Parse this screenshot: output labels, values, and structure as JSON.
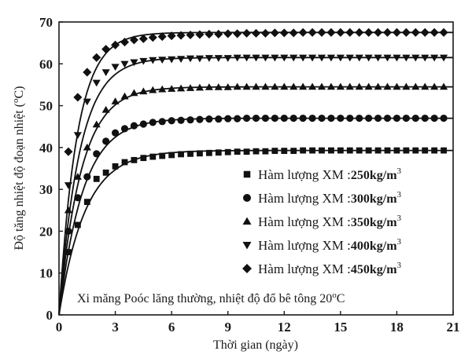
{
  "chart_data": {
    "type": "scatter",
    "xlabel": "Thời gian (ngày)",
    "ylabel_prefix": "Độ tăng nhiệt độ đoạn nhiệt (",
    "ylabel_degree": "o",
    "ylabel_suffix": "C)",
    "xlim": [
      0,
      21
    ],
    "ylim": [
      0,
      70
    ],
    "xticks": [
      "0",
      "3",
      "6",
      "9",
      "12",
      "15",
      "18",
      "21"
    ],
    "yticks": [
      "0",
      "10",
      "20",
      "30",
      "40",
      "50",
      "60",
      "70"
    ],
    "grid": false,
    "legend_position": "right",
    "note_prefix": "Xi măng Poóc lăng thường, nhiệt độ đổ bê tông 20",
    "note_degree": "o",
    "note_suffix": "C",
    "series": [
      {
        "legend_prefix": "Hàm lượng XM :",
        "legend_unit": "250kg/m",
        "legend_exp": "3",
        "marker": "square",
        "ultimate": 39.3,
        "x": [
          0.5,
          1,
          1.5,
          2,
          2.5,
          3,
          3.5,
          4,
          4.5,
          5,
          5.5,
          6,
          6.5,
          7,
          7.5,
          8,
          8.5,
          9,
          9.5,
          10,
          10.5,
          11,
          11.5,
          12,
          12.5,
          13,
          13.5,
          14,
          14.5,
          15,
          15.5,
          16,
          16.5,
          17,
          17.5,
          18,
          18.5,
          19,
          19.5,
          20,
          20.5
        ],
        "y": [
          15,
          21.5,
          27,
          32.5,
          34,
          35.5,
          36.5,
          37,
          37.5,
          37.8,
          38,
          38.2,
          38.4,
          38.5,
          38.6,
          38.7,
          38.8,
          38.9,
          39,
          39,
          39.1,
          39.1,
          39.2,
          39.2,
          39.2,
          39.3,
          39.3,
          39.3,
          39.3,
          39.3,
          39.3,
          39.3,
          39.3,
          39.3,
          39.3,
          39.3,
          39.3,
          39.3,
          39.3,
          39.3,
          39.3
        ]
      },
      {
        "legend_prefix": "Hàm lượng XM :",
        "legend_unit": "300kg/m",
        "legend_exp": "3",
        "marker": "circle",
        "ultimate": 47,
        "x": [
          0.5,
          1,
          1.5,
          2,
          2.5,
          3,
          3.5,
          4,
          4.5,
          5,
          5.5,
          6,
          6.5,
          7,
          7.5,
          8,
          8.5,
          9,
          9.5,
          10,
          10.5,
          11,
          11.5,
          12,
          12.5,
          13,
          13.5,
          14,
          14.5,
          15,
          15.5,
          16,
          16.5,
          17,
          17.5,
          18,
          18.5,
          19,
          19.5,
          20,
          20.5
        ],
        "y": [
          20,
          28,
          33,
          38.5,
          41.5,
          43.5,
          44.5,
          45.2,
          45.6,
          46,
          46.2,
          46.4,
          46.5,
          46.6,
          46.7,
          46.8,
          46.8,
          46.9,
          46.9,
          47,
          47,
          47,
          47,
          47,
          47,
          47,
          47,
          47,
          47,
          47,
          47,
          47,
          47,
          47,
          47,
          47,
          47,
          47,
          47,
          47,
          47
        ]
      },
      {
        "legend_prefix": "Hàm lượng XM :",
        "legend_unit": "350kg/m",
        "legend_exp": "3",
        "marker": "triangle-up",
        "ultimate": 54.5,
        "x": [
          0.5,
          1,
          1.5,
          2,
          2.5,
          3,
          3.5,
          4,
          4.5,
          5,
          5.5,
          6,
          6.5,
          7,
          7.5,
          8,
          8.5,
          9,
          9.5,
          10,
          10.5,
          11,
          11.5,
          12,
          12.5,
          13,
          13.5,
          14,
          14.5,
          15,
          15.5,
          16,
          16.5,
          17,
          17.5,
          18,
          18.5,
          19,
          19.5,
          20,
          20.5
        ],
        "y": [
          25,
          33,
          40,
          45.5,
          49,
          51,
          52.2,
          53,
          53.4,
          53.7,
          53.9,
          54,
          54.1,
          54.2,
          54.3,
          54.4,
          54.4,
          54.4,
          54.5,
          54.5,
          54.5,
          54.5,
          54.5,
          54.5,
          54.5,
          54.5,
          54.5,
          54.5,
          54.5,
          54.5,
          54.5,
          54.5,
          54.5,
          54.5,
          54.5,
          54.5,
          54.5,
          54.5,
          54.5,
          54.5,
          54.5
        ]
      },
      {
        "legend_prefix": "Hàm lượng XM :",
        "legend_unit": "400kg/m",
        "legend_exp": "3",
        "marker": "triangle-down",
        "ultimate": 61.5,
        "x": [
          0.5,
          1,
          1.5,
          2,
          2.5,
          3,
          3.5,
          4,
          4.5,
          5,
          5.5,
          6,
          6.5,
          7,
          7.5,
          8,
          8.5,
          9,
          9.5,
          10,
          10.5,
          11,
          11.5,
          12,
          12.5,
          13,
          13.5,
          14,
          14.5,
          15,
          15.5,
          16,
          16.5,
          17,
          17.5,
          18,
          18.5,
          19,
          19.5,
          20,
          20.5
        ],
        "y": [
          31,
          43,
          51,
          55.5,
          58,
          59.3,
          60,
          60.4,
          60.7,
          60.9,
          61,
          61.1,
          61.2,
          61.3,
          61.3,
          61.4,
          61.4,
          61.4,
          61.5,
          61.5,
          61.5,
          61.5,
          61.5,
          61.5,
          61.5,
          61.5,
          61.5,
          61.5,
          61.5,
          61.5,
          61.5,
          61.5,
          61.5,
          61.5,
          61.5,
          61.5,
          61.5,
          61.5,
          61.5,
          61.5,
          61.5
        ]
      },
      {
        "legend_prefix": "Hàm lượng XM :",
        "legend_unit": "450kg/m",
        "legend_exp": "3",
        "marker": "diamond",
        "ultimate": 67.5,
        "x": [
          0.5,
          1,
          1.5,
          2,
          2.5,
          3,
          3.5,
          4,
          4.5,
          5,
          5.5,
          6,
          6.5,
          7,
          7.5,
          8,
          8.5,
          9,
          9.5,
          10,
          10.5,
          11,
          11.5,
          12,
          12.5,
          13,
          13.5,
          14,
          14.5,
          15,
          15.5,
          16,
          16.5,
          17,
          17.5,
          18,
          18.5,
          19,
          19.5,
          20,
          20.5
        ],
        "y": [
          39,
          52,
          58,
          61.5,
          63.5,
          64.5,
          65.2,
          65.7,
          66,
          66.3,
          66.5,
          66.7,
          66.8,
          66.9,
          67,
          67.1,
          67.1,
          67.2,
          67.2,
          67.3,
          67.3,
          67.3,
          67.4,
          67.4,
          67.4,
          67.5,
          67.5,
          67.5,
          67.5,
          67.5,
          67.5,
          67.5,
          67.5,
          67.5,
          67.5,
          67.5,
          67.5,
          67.5,
          67.5,
          67.5,
          67.5
        ]
      }
    ]
  }
}
